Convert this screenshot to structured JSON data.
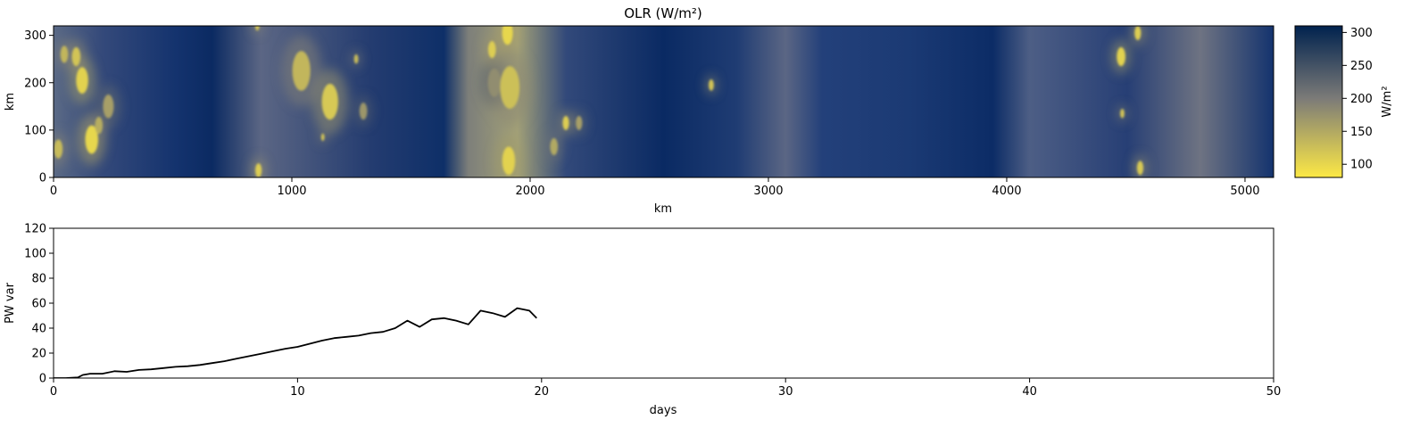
{
  "chart_data": [
    {
      "type": "heatmap",
      "title": "OLR (W/m²)",
      "xlabel": "km",
      "ylabel": "km",
      "xlim": [
        0,
        5120
      ],
      "ylim": [
        0,
        320
      ],
      "xticks": [
        0,
        1000,
        2000,
        3000,
        4000,
        5000
      ],
      "yticks": [
        0,
        100,
        200,
        300
      ],
      "colorbar": {
        "label": "W/m²",
        "range": [
          80,
          310
        ],
        "ticks": [
          100,
          150,
          200,
          250,
          300
        ],
        "colormap": "cividis_r",
        "color_low": "#fde945",
        "color_mid": "#7c7b78",
        "color_high": "#00224e"
      },
      "convective_cells": [
        {
          "x": 95,
          "y": 255,
          "r": 20,
          "olr": 120
        },
        {
          "x": 120,
          "y": 205,
          "r": 28,
          "olr": 105
        },
        {
          "x": 45,
          "y": 260,
          "r": 18,
          "olr": 135
        },
        {
          "x": 20,
          "y": 60,
          "r": 20,
          "olr": 130
        },
        {
          "x": 160,
          "y": 80,
          "r": 30,
          "olr": 100
        },
        {
          "x": 190,
          "y": 110,
          "r": 18,
          "olr": 145
        },
        {
          "x": 230,
          "y": 150,
          "r": 25,
          "olr": 160
        },
        {
          "x": 860,
          "y": 15,
          "r": 15,
          "olr": 110
        },
        {
          "x": 855,
          "y": 320,
          "r": 10,
          "olr": 120
        },
        {
          "x": 1040,
          "y": 225,
          "r": 42,
          "olr": 135
        },
        {
          "x": 1160,
          "y": 160,
          "r": 38,
          "olr": 115
        },
        {
          "x": 1130,
          "y": 85,
          "r": 8,
          "olr": 120
        },
        {
          "x": 1270,
          "y": 250,
          "r": 10,
          "olr": 130
        },
        {
          "x": 1300,
          "y": 140,
          "r": 18,
          "olr": 170
        },
        {
          "x": 1850,
          "y": 200,
          "r": 30,
          "olr": 180
        },
        {
          "x": 1840,
          "y": 270,
          "r": 18,
          "olr": 110
        },
        {
          "x": 1905,
          "y": 305,
          "r": 25,
          "olr": 100
        },
        {
          "x": 1915,
          "y": 190,
          "r": 45,
          "olr": 125
        },
        {
          "x": 1910,
          "y": 35,
          "r": 30,
          "olr": 105
        },
        {
          "x": 2150,
          "y": 115,
          "r": 15,
          "olr": 110
        },
        {
          "x": 2205,
          "y": 115,
          "r": 15,
          "olr": 160
        },
        {
          "x": 2100,
          "y": 65,
          "r": 18,
          "olr": 150
        },
        {
          "x": 2760,
          "y": 195,
          "r": 12,
          "olr": 120
        },
        {
          "x": 4480,
          "y": 255,
          "r": 20,
          "olr": 105
        },
        {
          "x": 4550,
          "y": 305,
          "r": 15,
          "olr": 110
        },
        {
          "x": 4485,
          "y": 135,
          "r": 10,
          "olr": 120
        },
        {
          "x": 4560,
          "y": 20,
          "r": 15,
          "olr": 115
        }
      ]
    },
    {
      "type": "line",
      "title": "",
      "xlabel": "days",
      "ylabel": "PW var",
      "xlim": [
        0,
        50
      ],
      "ylim": [
        0,
        120
      ],
      "xticks": [
        0,
        10,
        20,
        30,
        40,
        50
      ],
      "yticks": [
        0,
        20,
        40,
        60,
        80,
        100,
        120
      ],
      "line_color": "#000000",
      "x": [
        0,
        0.5,
        1.0,
        1.2,
        1.5,
        2.0,
        2.5,
        3.0,
        3.5,
        4.0,
        4.5,
        5.0,
        5.5,
        6.0,
        6.5,
        7.0,
        7.5,
        8.0,
        8.5,
        9.0,
        9.5,
        10.0,
        10.5,
        11.0,
        11.5,
        12.0,
        12.5,
        13.0,
        13.5,
        14.0,
        14.5,
        15.0,
        15.5,
        16.0,
        16.5,
        17.0,
        17.5,
        18.0,
        18.5,
        19.0,
        19.5,
        19.8
      ],
      "y": [
        0,
        0,
        0.5,
        2.5,
        3.5,
        3.5,
        5.5,
        5.0,
        6.5,
        7.0,
        8.0,
        9.0,
        9.5,
        10.5,
        12.0,
        13.5,
        15.5,
        17.5,
        19.5,
        21.5,
        23.5,
        25.0,
        27.5,
        30.0,
        32.0,
        33.0,
        34.0,
        36.0,
        37.0,
        40.0,
        46.0,
        41.0,
        47.0,
        48.0,
        46.0,
        43.0,
        54.0,
        52.0,
        49.0,
        56.0,
        54.0,
        48.0
      ]
    }
  ]
}
